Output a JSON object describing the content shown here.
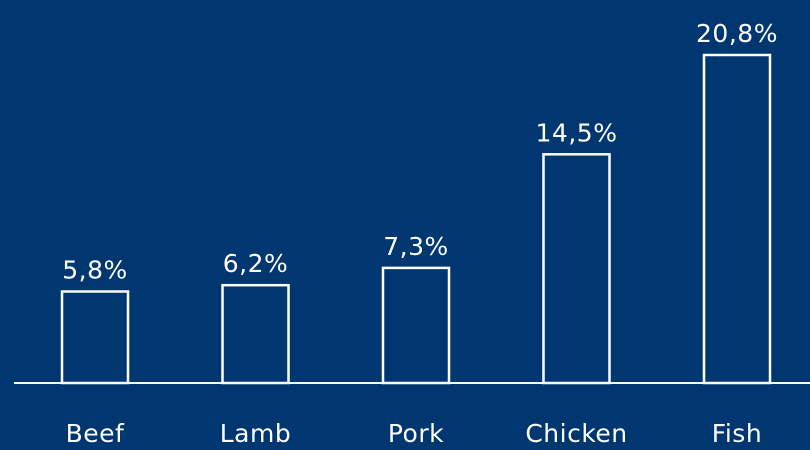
{
  "chart_data": {
    "type": "bar",
    "categories": [
      "Beef",
      "Lamb",
      "Pork",
      "Chicken",
      "Fish"
    ],
    "values": [
      5.8,
      6.2,
      7.3,
      14.5,
      20.8
    ],
    "value_labels": [
      "5,8%",
      "6,2%",
      "7,3%",
      "14,5%",
      "20,8%"
    ],
    "title": "",
    "xlabel": "",
    "ylabel": "",
    "ylim": [
      0,
      20.8
    ],
    "grid": false,
    "legend": "none"
  },
  "colors": {
    "background": "#003770",
    "bar_outline": "#ffffff",
    "text": "#ffffff"
  }
}
